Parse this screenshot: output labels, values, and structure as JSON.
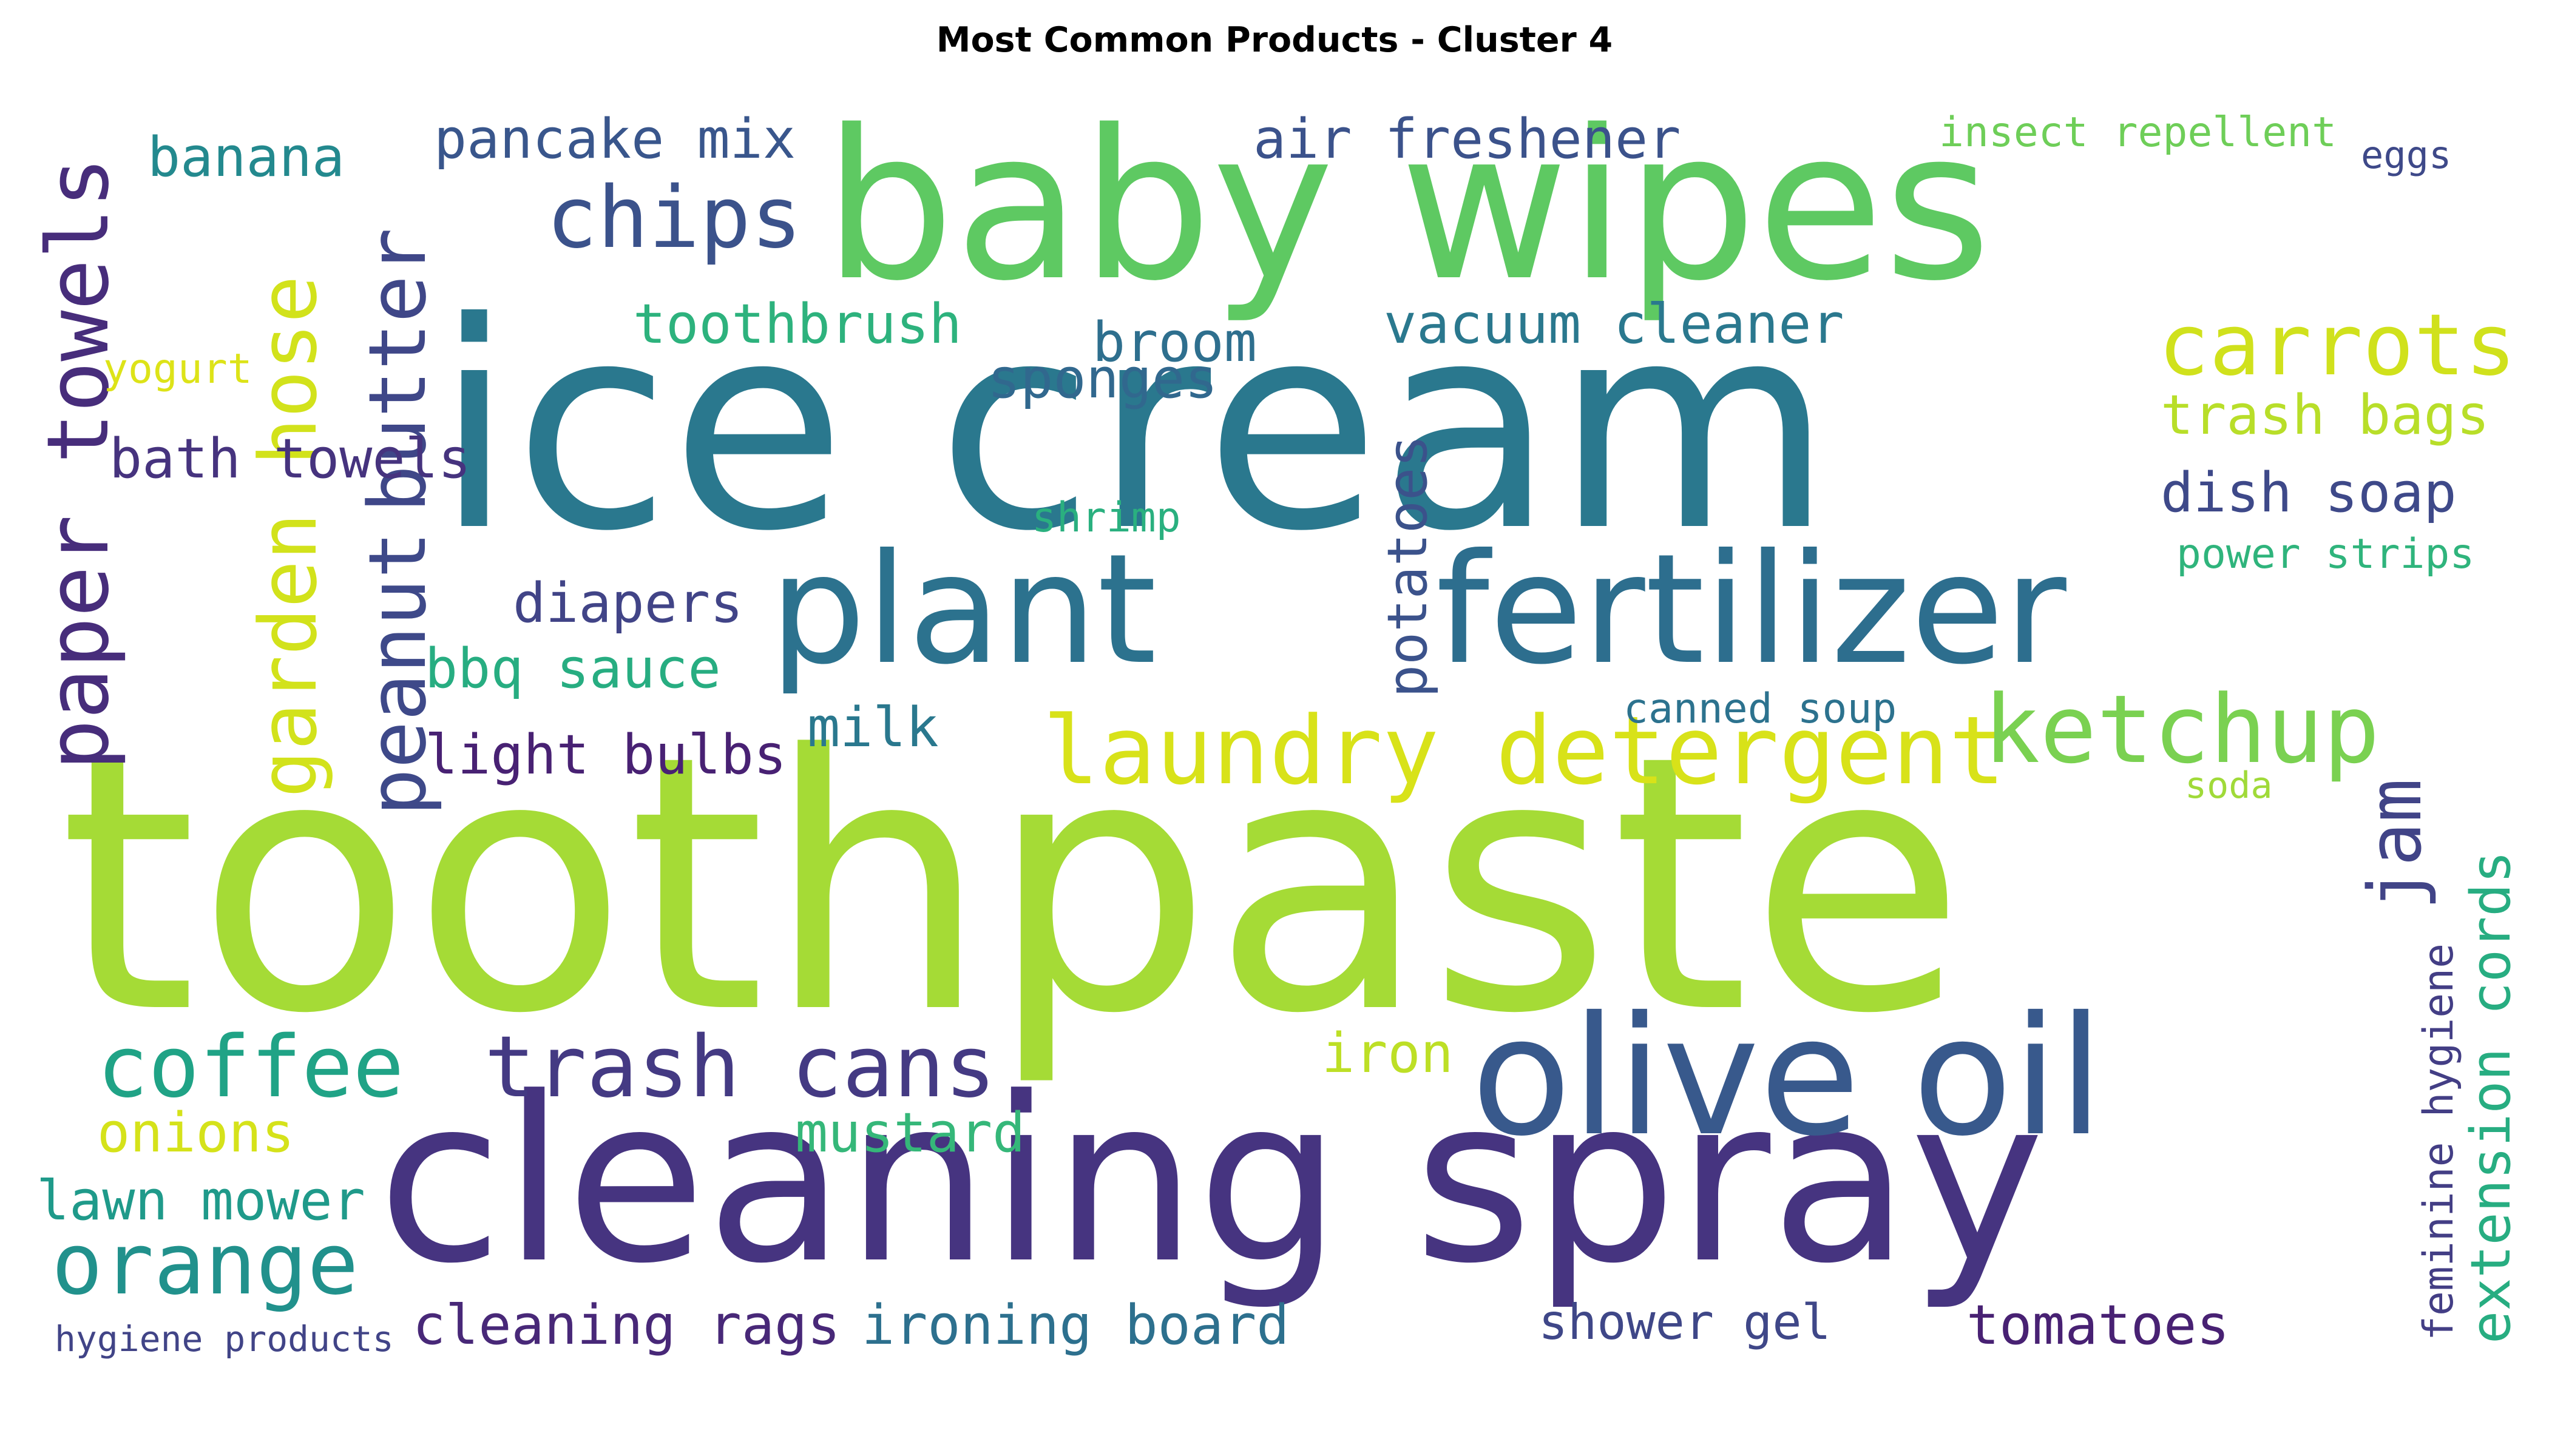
{
  "title": "Most Common Products - Cluster 4",
  "words": [
    {
      "id": "toothpaste",
      "text": "toothpaste",
      "color": "#a5db36"
    },
    {
      "id": "ice-cream",
      "text": "ice cream",
      "color": "#2a788e"
    },
    {
      "id": "baby-wipes",
      "text": "baby wipes",
      "color": "#5ec962"
    },
    {
      "id": "cleaning-spray",
      "text": "cleaning spray",
      "color": "#463480"
    },
    {
      "id": "plant",
      "text": "plant",
      "color": "#2c728e"
    },
    {
      "id": "fertilizer",
      "text": "fertilizer",
      "color": "#2d6e8e"
    },
    {
      "id": "olive-oil",
      "text": "olive oil",
      "color": "#38598c"
    },
    {
      "id": "laundry-detergent",
      "text": "laundry detergent",
      "color": "#d8e219"
    },
    {
      "id": "ketchup",
      "text": "ketchup",
      "color": "#7ad151"
    },
    {
      "id": "coffee",
      "text": "coffee",
      "color": "#20a386"
    },
    {
      "id": "trash-cans",
      "text": "trash cans",
      "color": "#443a83"
    },
    {
      "id": "orange",
      "text": "orange",
      "color": "#21918c"
    },
    {
      "id": "chips",
      "text": "chips",
      "color": "#3b528b"
    },
    {
      "id": "carrots",
      "text": "carrots",
      "color": "#d0e11c"
    },
    {
      "id": "paper-towels",
      "text": "paper towels",
      "color": "#472d7b"
    },
    {
      "id": "garden-hose",
      "text": "garden hose",
      "color": "#d2e21b"
    },
    {
      "id": "peanut",
      "text": "peanut",
      "color": "#3e4989"
    },
    {
      "id": "butter",
      "text": "butter",
      "color": "#3f4788"
    },
    {
      "id": "air-freshener",
      "text": "air freshener",
      "color": "#3b528b"
    },
    {
      "id": "pancake-mix",
      "text": "pancake mix",
      "color": "#39568c"
    },
    {
      "id": "banana",
      "text": "banana",
      "color": "#23898e"
    },
    {
      "id": "toothbrush",
      "text": "toothbrush",
      "color": "#2db27d"
    },
    {
      "id": "broom",
      "text": "broom",
      "color": "#2e6f8e"
    },
    {
      "id": "vacuum-cleaner",
      "text": "vacuum cleaner",
      "color": "#2a788e"
    },
    {
      "id": "sponges",
      "text": "sponges",
      "color": "#31688e"
    },
    {
      "id": "trash-bags",
      "text": "trash bags",
      "color": "#b8de29"
    },
    {
      "id": "dish-soap",
      "text": "dish soap",
      "color": "#3e4989"
    },
    {
      "id": "power-strips",
      "text": "power strips",
      "color": "#2fb47c"
    },
    {
      "id": "bath-towels",
      "text": "bath towels",
      "color": "#46337e"
    },
    {
      "id": "yogurt",
      "text": "yogurt",
      "color": "#dde318"
    },
    {
      "id": "shrimp",
      "text": "shrimp",
      "color": "#2ab07f"
    },
    {
      "id": "potatoes",
      "text": "potatoes",
      "color": "#3b528b"
    },
    {
      "id": "diapers",
      "text": "diapers",
      "color": "#414487"
    },
    {
      "id": "bbq-sauce",
      "text": "bbq sauce",
      "color": "#27ad81"
    },
    {
      "id": "light-bulbs",
      "text": "light bulbs",
      "color": "#482173"
    },
    {
      "id": "milk",
      "text": "milk",
      "color": "#2a788e"
    },
    {
      "id": "canned-soup",
      "text": "canned soup",
      "color": "#2c728e"
    },
    {
      "id": "jam",
      "text": "jam",
      "color": "#414487"
    },
    {
      "id": "soda",
      "text": "soda",
      "color": "#a0da39"
    },
    {
      "id": "extension-cords",
      "text": "extension cords",
      "color": "#27ad81"
    },
    {
      "id": "feminine-hygiene",
      "text": "feminine hygiene",
      "color": "#433e85"
    },
    {
      "id": "iron",
      "text": "iron",
      "color": "#bddf26"
    },
    {
      "id": "mustard",
      "text": "mustard",
      "color": "#35b779"
    },
    {
      "id": "onions",
      "text": "onions",
      "color": "#d5e21a"
    },
    {
      "id": "lawn-mower",
      "text": "lawn mower",
      "color": "#1f9a8a"
    },
    {
      "id": "hygiene-products",
      "text": "hygiene products",
      "color": "#414487"
    },
    {
      "id": "cleaning-rags",
      "text": "cleaning rags",
      "color": "#482878"
    },
    {
      "id": "ironing-board",
      "text": "ironing board",
      "color": "#2d708e"
    },
    {
      "id": "shower-gel",
      "text": "shower gel",
      "color": "#3f4788"
    },
    {
      "id": "tomatoes",
      "text": "tomatoes",
      "color": "#482173"
    },
    {
      "id": "insect-repellent",
      "text": "insect repellent",
      "color": "#6ece58"
    },
    {
      "id": "eggs",
      "text": "eggs",
      "color": "#3e4989"
    }
  ]
}
